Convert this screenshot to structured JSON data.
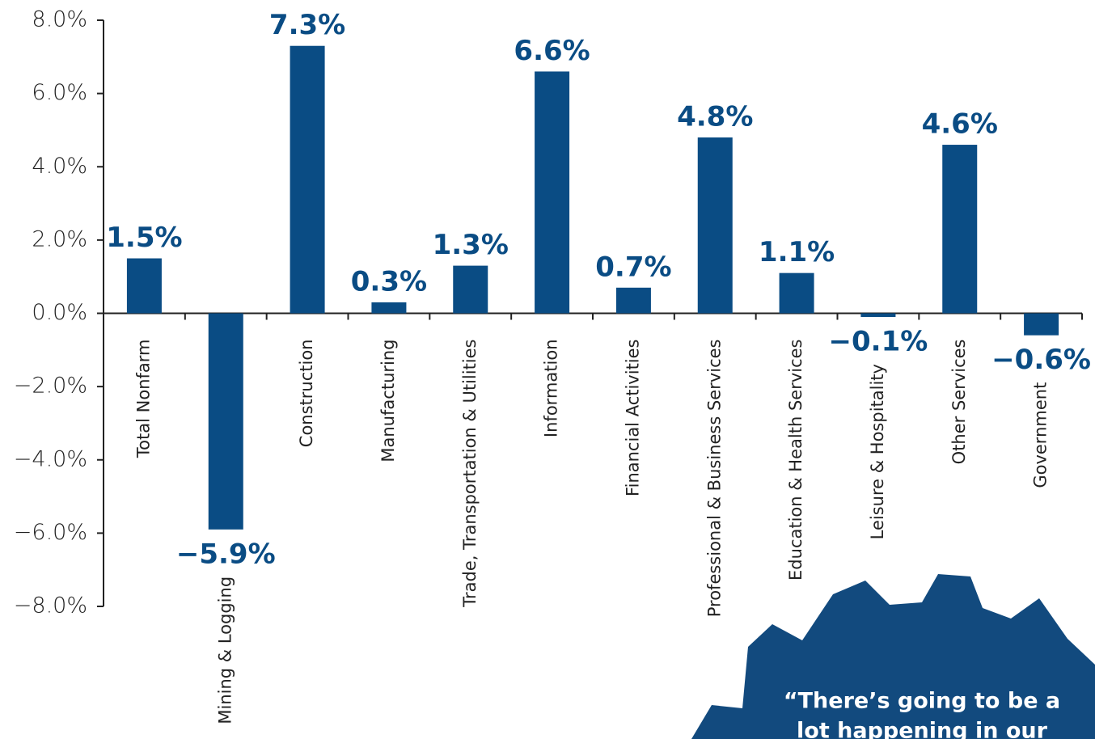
{
  "chart_data": {
    "type": "bar",
    "categories": [
      "Total Nonfarm",
      "Mining & Logging",
      "Construction",
      "Manufacturing",
      "Trade, Transportation & Utilities",
      "Information",
      "Financial Activities",
      "Professional & Business Services",
      "Education & Health Services",
      "Leisure & Hospitality",
      "Other Services",
      "Government"
    ],
    "values": [
      1.5,
      -5.9,
      7.3,
      0.3,
      1.3,
      6.6,
      0.7,
      4.8,
      1.1,
      -0.1,
      4.6,
      -0.6
    ],
    "value_labels": [
      "1.5%",
      "−5.9%",
      "7.3%",
      "0.3%",
      "1.3%",
      "6.6%",
      "0.7%",
      "4.8%",
      "1.1%",
      "−0.1%",
      "4.6%",
      "−0.6%"
    ],
    "color": "#0a4c84",
    "ylim": [
      -8,
      8
    ],
    "yticks": [
      {
        "value": -8,
        "label": "−8.0%"
      },
      {
        "value": -6,
        "label": "−6.0%"
      },
      {
        "value": -4,
        "label": "−4.0%"
      },
      {
        "value": -2,
        "label": "−2.0%"
      },
      {
        "value": 0,
        "label": "0.0%"
      },
      {
        "value": 2,
        "label": "2.0%"
      },
      {
        "value": 4,
        "label": "4.0%"
      },
      {
        "value": 6,
        "label": "6.0%"
      },
      {
        "value": 8,
        "label": "8.0%"
      }
    ],
    "grid": false,
    "annotation_lines": [
      "“There’s going to be a",
      "lot happening in our"
    ]
  }
}
